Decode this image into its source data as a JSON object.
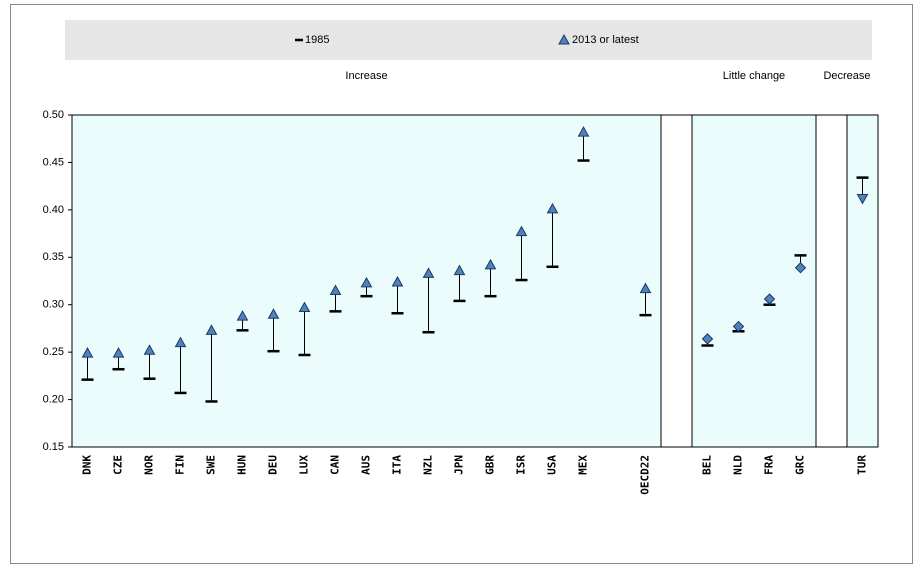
{
  "chart_data": {
    "type": "dumbbell",
    "categories": [
      "DNK",
      "CZE",
      "NOR",
      "FIN",
      "SWE",
      "HUN",
      "DEU",
      "LUX",
      "CAN",
      "AUS",
      "ITA",
      "NZL",
      "JPN",
      "GBR",
      "ISR",
      "USA",
      "MEX",
      null,
      "OECD22",
      null,
      "BEL",
      "NLD",
      "FRA",
      "GRC",
      null,
      "TUR"
    ],
    "series": [
      {
        "name": "1985",
        "color": "#000000",
        "values": [
          0.221,
          0.232,
          0.222,
          0.207,
          0.198,
          0.273,
          0.251,
          0.247,
          0.293,
          0.309,
          0.291,
          0.271,
          0.304,
          0.309,
          0.326,
          0.34,
          0.452,
          null,
          0.289,
          null,
          0.257,
          0.272,
          0.3,
          0.352,
          null,
          0.434
        ]
      },
      {
        "name": "2013 or latest",
        "color": "#4f81bd",
        "values": [
          0.249,
          0.249,
          0.252,
          0.26,
          0.273,
          0.288,
          0.29,
          0.297,
          0.315,
          0.323,
          0.324,
          0.333,
          0.336,
          0.342,
          0.377,
          0.401,
          0.482,
          null,
          0.317,
          null,
          0.264,
          0.277,
          0.306,
          0.339,
          null,
          0.412
        ]
      }
    ],
    "groups": [
      "Increase",
      "Little change",
      "Decrease"
    ],
    "ylim": [
      0.15,
      0.5
    ],
    "yticks": [
      {
        "value": 0.15,
        "label": "0.15"
      },
      {
        "value": 0.2,
        "label": "0.20"
      },
      {
        "value": 0.25,
        "label": "0.25"
      },
      {
        "value": 0.3,
        "label": "0.30"
      },
      {
        "value": 0.35,
        "label": "0.35"
      },
      {
        "value": 0.4,
        "label": "0.40"
      },
      {
        "value": 0.45,
        "label": "0.45"
      },
      {
        "value": 0.5,
        "label": "0.50"
      }
    ],
    "panel_color": "#eafcfc"
  }
}
